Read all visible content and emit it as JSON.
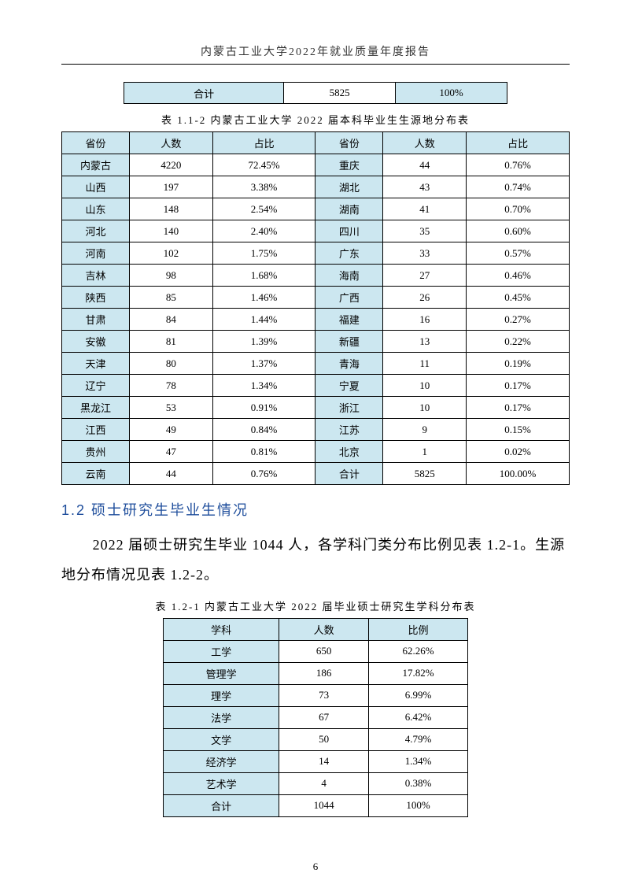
{
  "header": "内蒙古工业大学2022年就业质量年度报告",
  "pageNumber": "6",
  "summaryRow": {
    "label": "合计",
    "count": "5825",
    "pct": "100%"
  },
  "table1": {
    "caption": "表 1.1-2 内蒙古工业大学 2022 届本科毕业生生源地分布表",
    "headers": {
      "prov": "省份",
      "count": "人数",
      "pct": "占比"
    },
    "rows": [
      {
        "l_prov": "内蒙古",
        "l_count": "4220",
        "l_pct": "72.45%",
        "r_prov": "重庆",
        "r_count": "44",
        "r_pct": "0.76%"
      },
      {
        "l_prov": "山西",
        "l_count": "197",
        "l_pct": "3.38%",
        "r_prov": "湖北",
        "r_count": "43",
        "r_pct": "0.74%"
      },
      {
        "l_prov": "山东",
        "l_count": "148",
        "l_pct": "2.54%",
        "r_prov": "湖南",
        "r_count": "41",
        "r_pct": "0.70%"
      },
      {
        "l_prov": "河北",
        "l_count": "140",
        "l_pct": "2.40%",
        "r_prov": "四川",
        "r_count": "35",
        "r_pct": "0.60%"
      },
      {
        "l_prov": "河南",
        "l_count": "102",
        "l_pct": "1.75%",
        "r_prov": "广东",
        "r_count": "33",
        "r_pct": "0.57%"
      },
      {
        "l_prov": "吉林",
        "l_count": "98",
        "l_pct": "1.68%",
        "r_prov": "海南",
        "r_count": "27",
        "r_pct": "0.46%"
      },
      {
        "l_prov": "陕西",
        "l_count": "85",
        "l_pct": "1.46%",
        "r_prov": "广西",
        "r_count": "26",
        "r_pct": "0.45%"
      },
      {
        "l_prov": "甘肃",
        "l_count": "84",
        "l_pct": "1.44%",
        "r_prov": "福建",
        "r_count": "16",
        "r_pct": "0.27%"
      },
      {
        "l_prov": "安徽",
        "l_count": "81",
        "l_pct": "1.39%",
        "r_prov": "新疆",
        "r_count": "13",
        "r_pct": "0.22%"
      },
      {
        "l_prov": "天津",
        "l_count": "80",
        "l_pct": "1.37%",
        "r_prov": "青海",
        "r_count": "11",
        "r_pct": "0.19%"
      },
      {
        "l_prov": "辽宁",
        "l_count": "78",
        "l_pct": "1.34%",
        "r_prov": "宁夏",
        "r_count": "10",
        "r_pct": "0.17%"
      },
      {
        "l_prov": "黑龙江",
        "l_count": "53",
        "l_pct": "0.91%",
        "r_prov": "浙江",
        "r_count": "10",
        "r_pct": "0.17%"
      },
      {
        "l_prov": "江西",
        "l_count": "49",
        "l_pct": "0.84%",
        "r_prov": "江苏",
        "r_count": "9",
        "r_pct": "0.15%"
      },
      {
        "l_prov": "贵州",
        "l_count": "47",
        "l_pct": "0.81%",
        "r_prov": "北京",
        "r_count": "1",
        "r_pct": "0.02%"
      },
      {
        "l_prov": "云南",
        "l_count": "44",
        "l_pct": "0.76%",
        "r_prov": "合计",
        "r_count": "5825",
        "r_pct": "100.00%"
      }
    ]
  },
  "section12": {
    "heading": "1.2 硕士研究生毕业生情况",
    "paragraph": "2022 届硕士研究生毕业 1044 人，各学科门类分布比例见表 1.2-1。生源地分布情况见表 1.2-2。"
  },
  "table2": {
    "caption": "表 1.2-1 内蒙古工业大学 2022 届毕业硕士研究生学科分布表",
    "headers": {
      "subj": "学科",
      "count": "人数",
      "pct": "比例"
    },
    "rows": [
      {
        "subj": "工学",
        "count": "650",
        "pct": "62.26%"
      },
      {
        "subj": "管理学",
        "count": "186",
        "pct": "17.82%"
      },
      {
        "subj": "理学",
        "count": "73",
        "pct": "6.99%"
      },
      {
        "subj": "法学",
        "count": "67",
        "pct": "6.42%"
      },
      {
        "subj": "文学",
        "count": "50",
        "pct": "4.79%"
      },
      {
        "subj": "经济学",
        "count": "14",
        "pct": "1.34%"
      },
      {
        "subj": "艺术学",
        "count": "4",
        "pct": "0.38%"
      },
      {
        "subj": "合计",
        "count": "1044",
        "pct": "100%"
      }
    ]
  },
  "colors": {
    "headerFill": "#cce7f0",
    "border": "#000000",
    "headingBlue": "#1f4e9c",
    "textBlack": "#000000",
    "background": "#ffffff"
  },
  "typography": {
    "bodyFont": "SimSun",
    "headingFont": "SimHei",
    "tableFontSize": 13,
    "bodyFontSize": 18,
    "headingFontSize": 18
  },
  "layout": {
    "pageWidth": 802,
    "pageHeight": 1133,
    "summaryTableWidth": 488,
    "provinceTableWidth": 646,
    "disciplineTableWidth": 388
  }
}
